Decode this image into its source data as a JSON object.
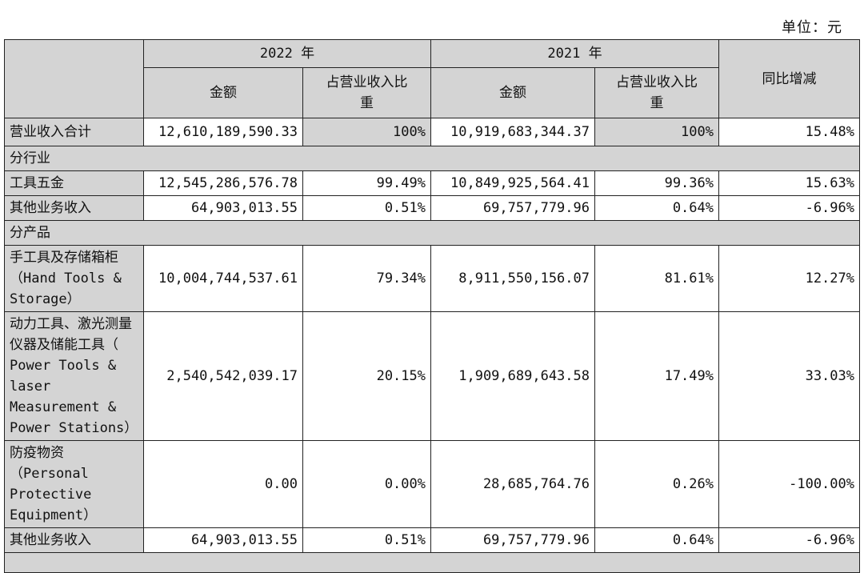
{
  "unit_label": "单位：元",
  "header": {
    "year_2022": "2022 年",
    "year_2021": "2021 年",
    "amount": "金额",
    "share_line1": "占营业收入比",
    "share_line2": "重",
    "yoy": "同比增减"
  },
  "total": {
    "label": "营业收入合计",
    "amount_2022": "12,610,189,590.33",
    "share_2022": "100%",
    "amount_2021": "10,919,683,344.37",
    "share_2021": "100%",
    "yoy": "15.48%"
  },
  "section_industry": "分行业",
  "industry": [
    {
      "label": "工具五金",
      "amount_2022": "12,545,286,576.78",
      "share_2022": "99.49%",
      "amount_2021": "10,849,925,564.41",
      "share_2021": "99.36%",
      "yoy": "15.63%"
    },
    {
      "label": "其他业务收入",
      "amount_2022": "64,903,013.55",
      "share_2022": "0.51%",
      "amount_2021": "69,757,779.96",
      "share_2021": "0.64%",
      "yoy": "-6.96%"
    }
  ],
  "section_product": "分产品",
  "product": [
    {
      "label": "手工具及存储箱柜（Hand Tools & Storage）",
      "amount_2022": "10,004,744,537.61",
      "share_2022": "79.34%",
      "amount_2021": "8,911,550,156.07",
      "share_2021": "81.61%",
      "yoy": "12.27%"
    },
    {
      "label": "动力工具、激光测量仪器及储能工具（ Power Tools & laser Measurement & Power Stations）",
      "amount_2022": "2,540,542,039.17",
      "share_2022": "20.15%",
      "amount_2021": "1,909,689,643.58",
      "share_2021": "17.49%",
      "yoy": "33.03%"
    },
    {
      "label": "防疫物资（Personal Protective Equipment）",
      "amount_2022": "0.00",
      "share_2022": "0.00%",
      "amount_2021": "28,685,764.76",
      "share_2021": "0.26%",
      "yoy": "-100.00%"
    },
    {
      "label": "其他业务收入",
      "amount_2022": "64,903,013.55",
      "share_2022": "0.51%",
      "amount_2021": "69,757,779.96",
      "share_2021": "0.64%",
      "yoy": "-6.96%"
    }
  ]
}
